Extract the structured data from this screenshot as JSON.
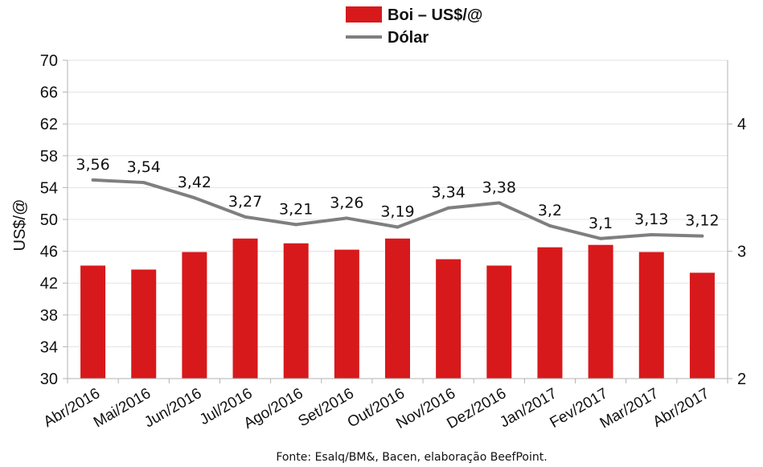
{
  "chart_data": {
    "type": "bar",
    "categories": [
      "Abr/2016",
      "Mai/2016",
      "Jun/2016",
      "Jul/2016",
      "Ago/2016",
      "Set/2016",
      "Out/2016",
      "Nov/2016",
      "Dez/2016",
      "Jan/2017",
      "Fev/2017",
      "Mar/2017",
      "Abr/2017"
    ],
    "series": [
      {
        "name": "Boi – US$/@",
        "type": "bar",
        "axis": "left",
        "color": "#d7191c",
        "values": [
          44.2,
          43.7,
          45.9,
          47.6,
          47.0,
          46.2,
          47.6,
          45.0,
          44.2,
          46.5,
          46.8,
          45.9,
          43.3
        ]
      },
      {
        "name": "Dólar",
        "type": "line",
        "axis": "right",
        "color": "#7f7f7f",
        "values": [
          3.56,
          3.54,
          3.42,
          3.27,
          3.21,
          3.26,
          3.19,
          3.34,
          3.38,
          3.2,
          3.1,
          3.13,
          3.12
        ],
        "labels": [
          "3,56",
          "3,54",
          "3,42",
          "3,27",
          "3,21",
          "3,26",
          "3,19",
          "3,34",
          "3,38",
          "3,2",
          "3,1",
          "3,13",
          "3,12"
        ]
      }
    ],
    "ylabel": "US$/@",
    "ylim": [
      30,
      70
    ],
    "yticks": [
      "30",
      "34",
      "38",
      "42",
      "46",
      "50",
      "54",
      "58",
      "62",
      "66",
      "70"
    ],
    "y2lim": [
      2,
      4.5
    ],
    "y2ticks": [
      "2",
      "3",
      "4"
    ],
    "legend": "top-center",
    "grid": true,
    "source": "Fonte:  Esalq/BM&,  Bacen,  elaboração  BeefPoint."
  }
}
